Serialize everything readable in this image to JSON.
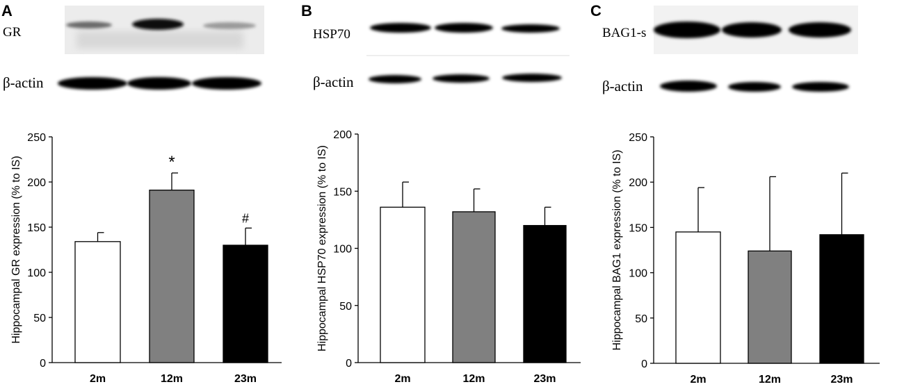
{
  "figure": {
    "panels": [
      {
        "letter": "A",
        "blot": {
          "target_label": "GR",
          "control_label": "β-actin"
        },
        "significance": [
          "",
          "*",
          "#"
        ]
      },
      {
        "letter": "B",
        "blot": {
          "target_label": "HSP70",
          "control_label": "β-actin"
        },
        "significance": [
          "",
          "",
          ""
        ]
      },
      {
        "letter": "C",
        "blot": {
          "target_label": "BAG1-s",
          "control_label": "β-actin"
        },
        "significance": [
          "",
          "",
          ""
        ]
      }
    ]
  },
  "colors": {
    "bar_2m": "#ffffff",
    "bar_12m": "#808080",
    "bar_23m": "#000000",
    "axis": "#000000"
  },
  "chart_data": [
    {
      "type": "bar",
      "title": "",
      "xlabel": "",
      "ylabel": "Hippocampal GR expression (% to IS)",
      "categories": [
        "2m",
        "12m",
        "23m"
      ],
      "values": [
        134,
        191,
        130
      ],
      "errors": [
        10,
        19,
        19
      ],
      "ylim": [
        0,
        250
      ],
      "yticks": [
        0,
        50,
        100,
        150,
        200,
        250
      ],
      "grid": false
    },
    {
      "type": "bar",
      "title": "",
      "xlabel": "",
      "ylabel": "Hippocampal HSP70 expression (% to IS)",
      "categories": [
        "2m",
        "12m",
        "23m"
      ],
      "values": [
        136,
        132,
        120
      ],
      "errors": [
        22,
        20,
        16
      ],
      "ylim": [
        0,
        200
      ],
      "yticks": [
        0,
        50,
        100,
        150,
        200
      ],
      "grid": false
    },
    {
      "type": "bar",
      "title": "",
      "xlabel": "",
      "ylabel": "Hippocampal BAG1 expression (% to IS)",
      "categories": [
        "2m",
        "12m",
        "23m"
      ],
      "values": [
        145,
        124,
        142
      ],
      "errors": [
        49,
        82,
        68
      ],
      "ylim": [
        0,
        250
      ],
      "yticks": [
        0,
        50,
        100,
        150,
        200,
        250
      ],
      "grid": false
    }
  ]
}
